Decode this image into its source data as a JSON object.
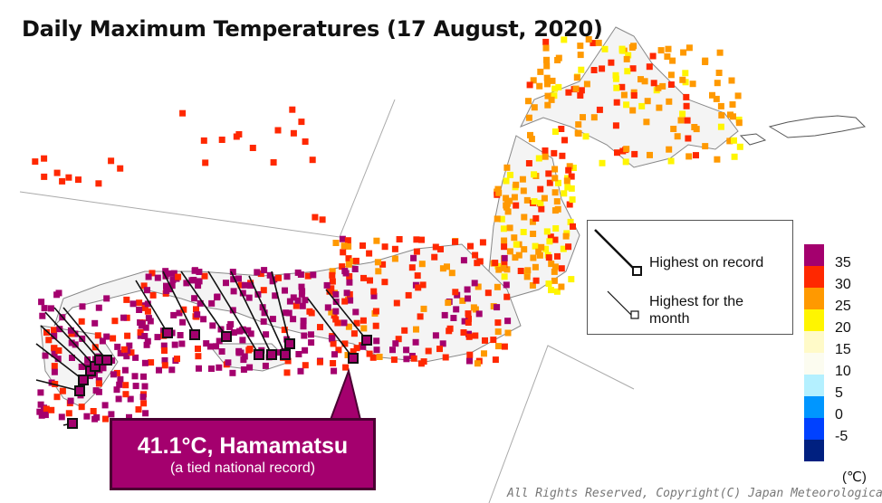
{
  "title": "Daily Maximum Temperatures (17 August, 2020)",
  "legend": {
    "highest_on_record": "Highest on record",
    "highest_for_month": "Highest for the month"
  },
  "colorbar": {
    "ticks": [
      "35",
      "30",
      "25",
      "20",
      "15",
      "10",
      "5",
      "0",
      "-5"
    ],
    "unit": "(℃)",
    "colors": [
      "#a4006e",
      "#ff2800",
      "#ff9900",
      "#fff500",
      "#fffac8",
      "#fcfcf0",
      "#b4f0ff",
      "#0096ff",
      "#0041ff",
      "#002080"
    ]
  },
  "callout": {
    "main": "41.1°C, Hamamatsu",
    "sub": "(a tied national record)"
  },
  "copyright": "All Rights Reserved, Copyright(C) Japan Meteorological Agen"
}
